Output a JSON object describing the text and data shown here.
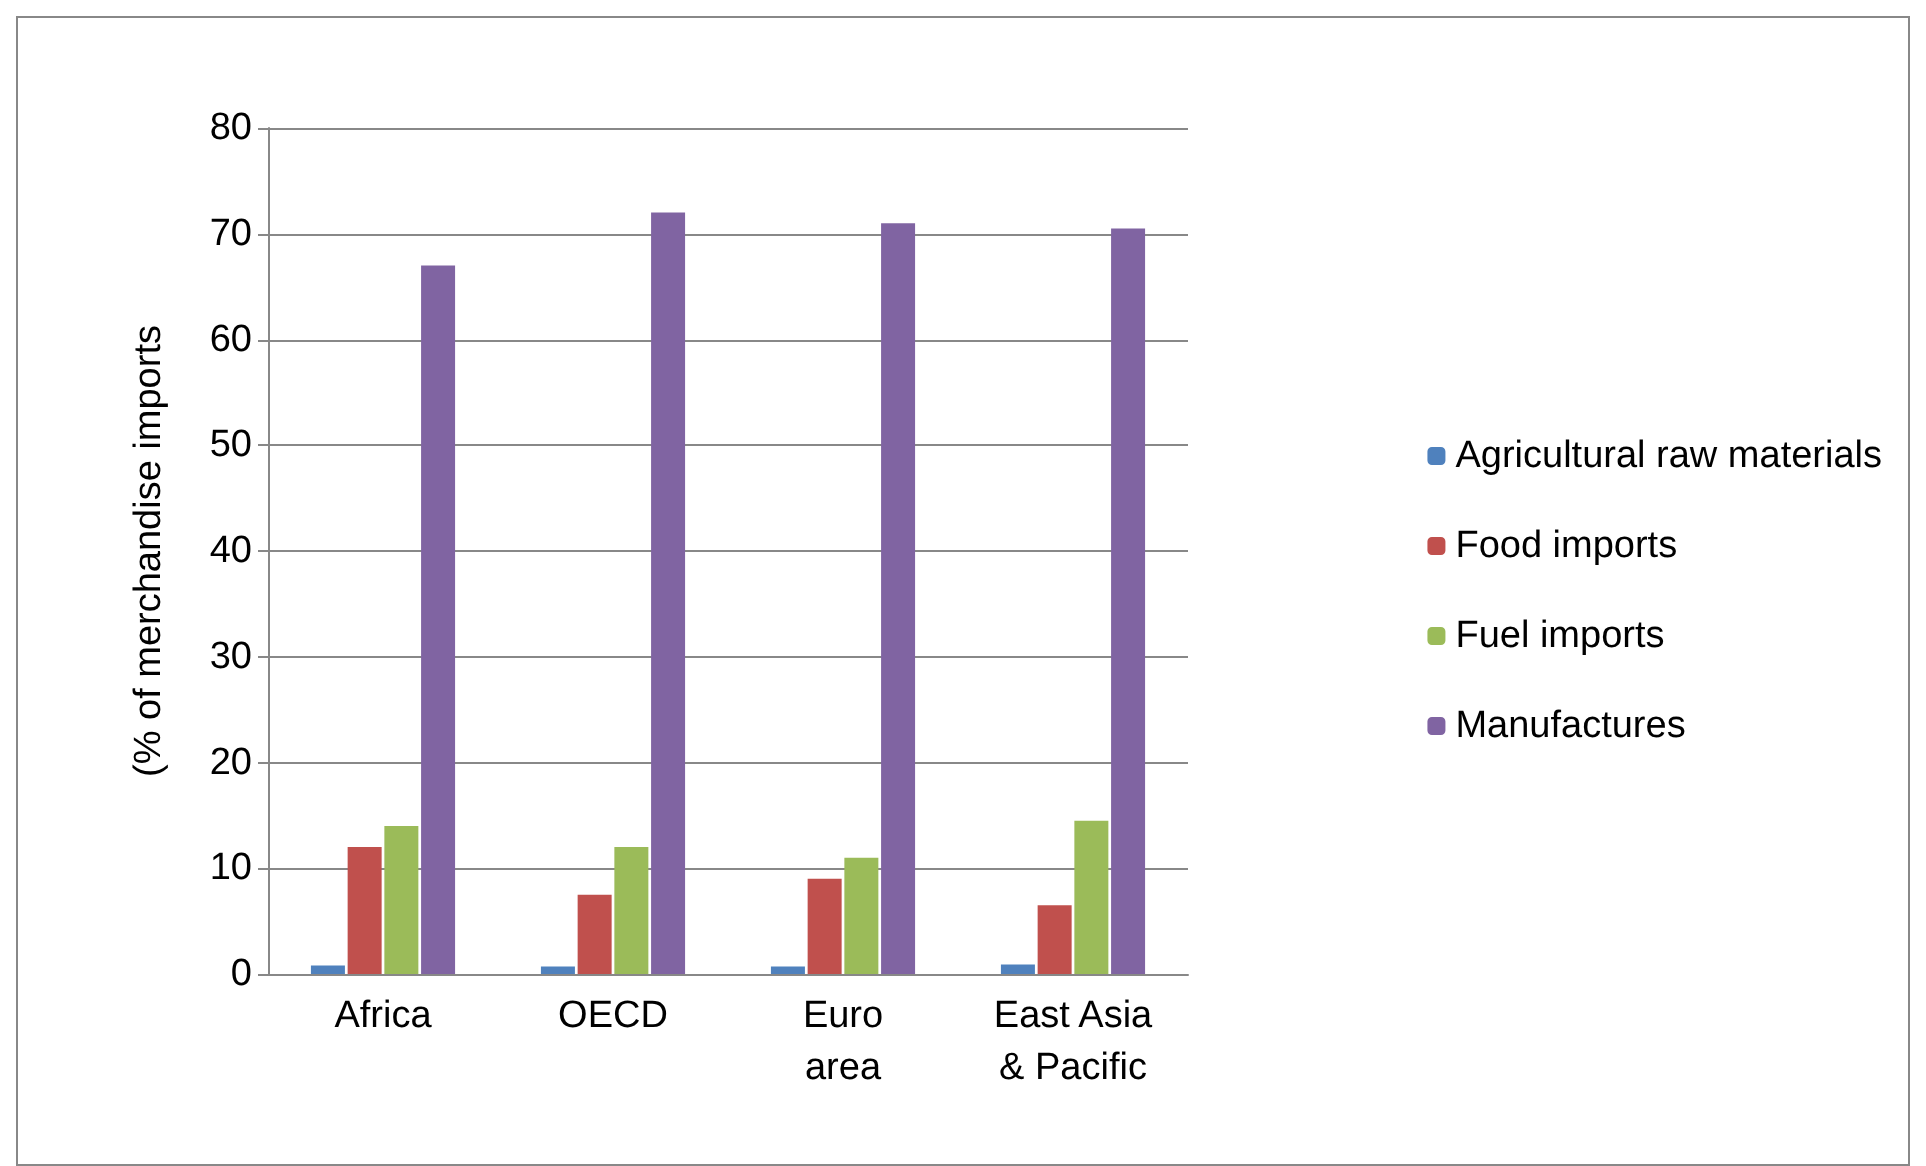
{
  "chart_data": {
    "type": "bar",
    "ylabel": "(% of merchandise imports",
    "categories": [
      "Africa",
      "OECD",
      "Euro\narea",
      "East Asia\n& Pacific"
    ],
    "series": [
      {
        "name": "Agricultural raw materials",
        "color": "#4f81bd",
        "values": [
          0.8,
          0.7,
          0.7,
          0.9
        ]
      },
      {
        "name": "Food imports",
        "color": "#c0504d",
        "values": [
          12,
          7.5,
          9,
          6.5
        ]
      },
      {
        "name": "Fuel imports",
        "color": "#9bbb59",
        "values": [
          14,
          12,
          11,
          14.5
        ]
      },
      {
        "name": "Manufactures",
        "color": "#8064a2",
        "values": [
          67,
          72,
          71,
          70.5
        ]
      }
    ],
    "ylim": [
      0,
      80
    ],
    "yticks": [
      0,
      10,
      20,
      30,
      40,
      50,
      60,
      70,
      80
    ],
    "grid": "y",
    "legend": "right"
  }
}
